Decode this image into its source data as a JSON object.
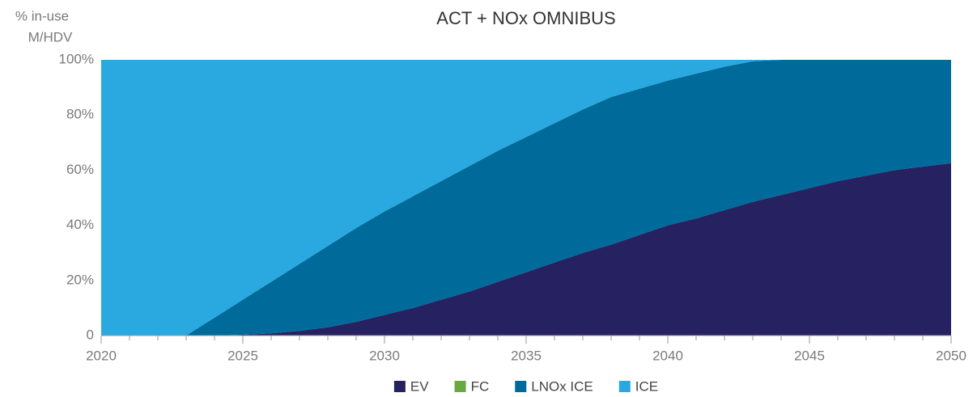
{
  "chart_data": {
    "type": "stacked_area",
    "title": "ACT + NOx OMNIBUS",
    "ylabel": [
      "% in-use",
      "M/HDV"
    ],
    "x": [
      2020,
      2021,
      2022,
      2023,
      2024,
      2025,
      2026,
      2027,
      2028,
      2029,
      2030,
      2031,
      2032,
      2033,
      2034,
      2035,
      2036,
      2037,
      2038,
      2039,
      2040,
      2041,
      2042,
      2043,
      2044,
      2045,
      2046,
      2047,
      2048,
      2049,
      2050
    ],
    "xlim": [
      2020,
      2050
    ],
    "xticks": [
      2020,
      2025,
      2030,
      2035,
      2040,
      2045,
      2050
    ],
    "ylim": [
      0,
      100
    ],
    "yticks": [
      0,
      {
        "value": 20,
        "label": "20%"
      },
      {
        "value": 40,
        "label": "40%"
      },
      {
        "value": 60,
        "label": "60%"
      },
      {
        "value": 80,
        "label": "80%"
      },
      {
        "value": 100,
        "label": "100%"
      }
    ],
    "legend": "bottom",
    "series": [
      {
        "name": "EV",
        "color": "#262262",
        "values": [
          0,
          0,
          0,
          0,
          0,
          0.3,
          0.8,
          1.7,
          3,
          5,
          7.5,
          10,
          13,
          16,
          19.5,
          23,
          26.5,
          30,
          33,
          36.5,
          40,
          42.5,
          45.5,
          48.5,
          51,
          53.5,
          56,
          58,
          60,
          61.3,
          62.5
        ]
      },
      {
        "name": "FC",
        "color": "#6aa842",
        "values": [
          0,
          0,
          0,
          0,
          0,
          0,
          0,
          0,
          0,
          0,
          0,
          0,
          0,
          0,
          0,
          0,
          0,
          0,
          0,
          0,
          0,
          0,
          0,
          0,
          0,
          0,
          0,
          0,
          0,
          0,
          0
        ]
      },
      {
        "name": "LNOx ICE",
        "color": "#006a9a",
        "values": [
          0,
          0,
          0,
          0,
          6.5,
          12.7,
          18.7,
          24.3,
          29.5,
          34,
          37.5,
          40.5,
          43,
          45.5,
          47.5,
          49,
          50.5,
          52,
          53.5,
          53,
          52.5,
          52.5,
          52,
          51,
          49,
          46.5,
          44,
          42,
          40,
          38.7,
          37.5
        ]
      },
      {
        "name": "ICE",
        "color": "#29a9e0",
        "values": [
          100,
          100,
          100,
          100,
          93.5,
          87,
          80.5,
          74,
          67.5,
          61,
          55,
          49.5,
          44,
          38.5,
          33,
          28,
          23,
          18,
          13.5,
          10.5,
          7.5,
          5,
          2.5,
          0.5,
          0,
          0,
          0,
          0,
          0,
          0,
          0
        ]
      }
    ]
  }
}
